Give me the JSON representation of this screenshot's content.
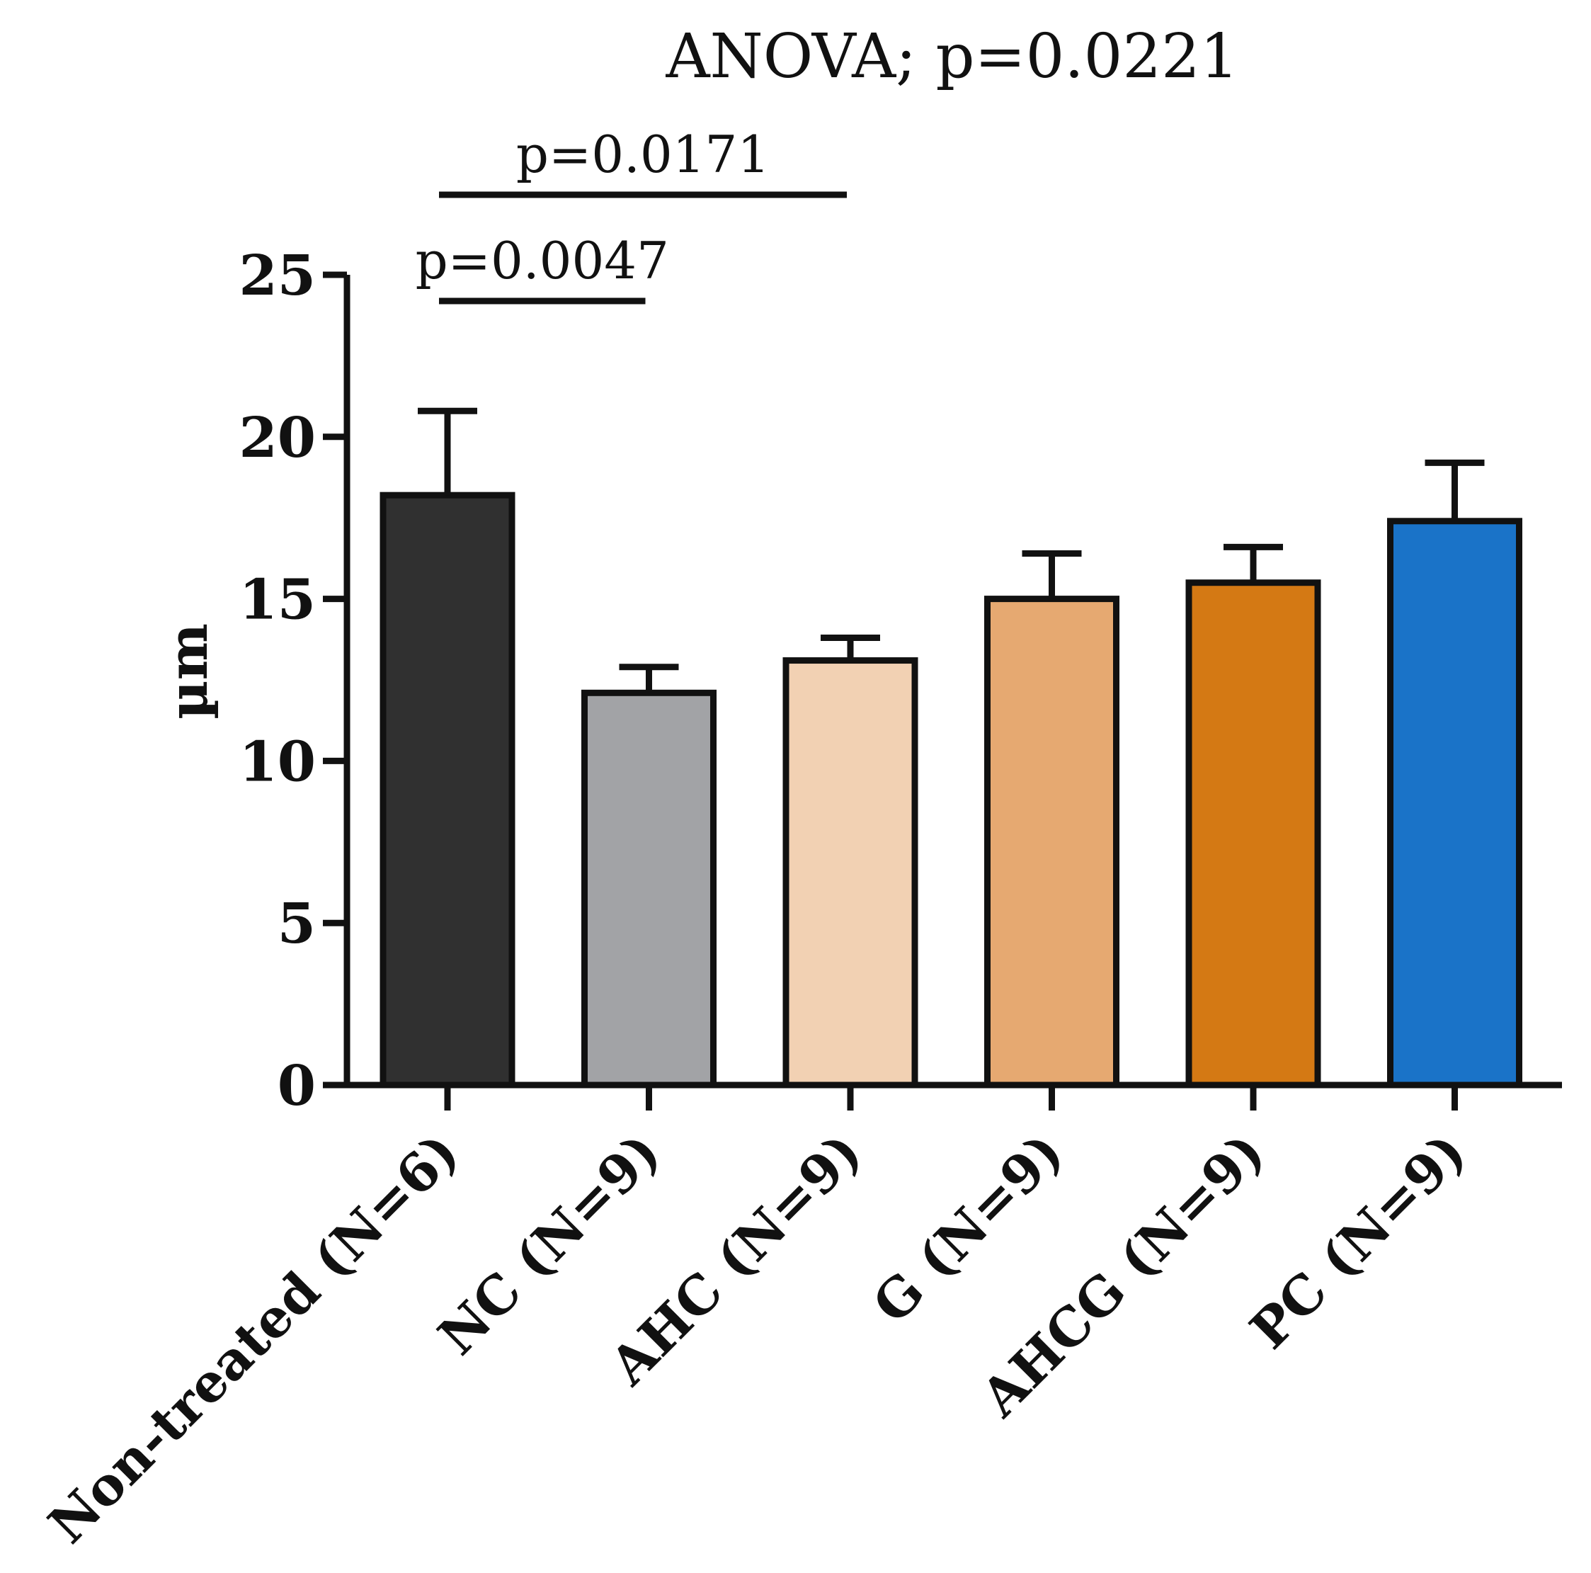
{
  "chart_data": {
    "type": "bar",
    "title": "ANOVA; p=0.0221",
    "ylabel": "µm",
    "xlabel": "",
    "ylim": [
      0,
      25
    ],
    "yticks": [
      0,
      5,
      10,
      15,
      20,
      25
    ],
    "ytick_labels": [
      "0",
      "5",
      "10",
      "15",
      "20",
      "25"
    ],
    "categories": [
      "Non-treated (N=6)",
      "NC (N=9)",
      "AHC (N=9)",
      "G (N=9)",
      "AHCG (N=9)",
      "PC (N=9)"
    ],
    "values": [
      18.2,
      12.1,
      13.1,
      15.0,
      15.5,
      17.4
    ],
    "errors": [
      2.6,
      0.8,
      0.7,
      1.4,
      1.1,
      1.8
    ],
    "colors": [
      "#303030",
      "#a2a3a6",
      "#f2d1b3",
      "#e6a971",
      "#d47914",
      "#1a73c8"
    ],
    "comparisons": [
      {
        "label": "p=0.0171",
        "from": 0,
        "to": 2
      },
      {
        "label": "p=0.0047",
        "from": 0,
        "to": 1
      }
    ]
  }
}
